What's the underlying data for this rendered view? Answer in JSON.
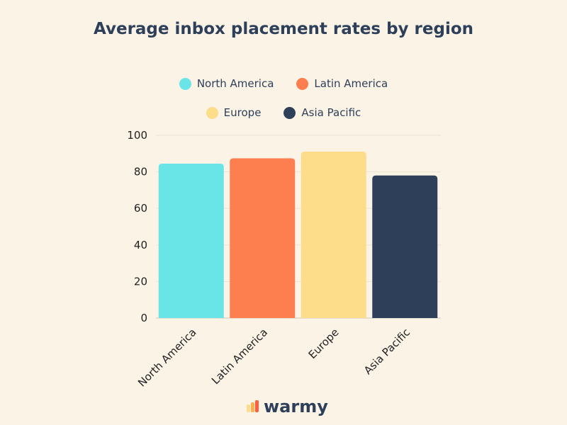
{
  "chart_data": {
    "type": "bar",
    "title": "Average inbox placement rates by region",
    "categories": [
      "North America",
      "Latin America",
      "Europe",
      "Asia Pacific"
    ],
    "values": [
      84.5,
      87.4,
      91.1,
      78.0
    ],
    "colors": [
      "#6ae5e7",
      "#fd7f4f",
      "#fddc8a",
      "#2e3f5a"
    ],
    "xlabel": "",
    "ylabel": "",
    "ylim": [
      0,
      100
    ],
    "yticks": [
      0,
      20,
      40,
      60,
      80,
      100
    ],
    "grid": true,
    "legend": [
      "North America",
      "Latin America",
      "Europe",
      "Asia Pacific"
    ],
    "legend_placement": "top"
  },
  "logo": {
    "text": "warmy"
  }
}
